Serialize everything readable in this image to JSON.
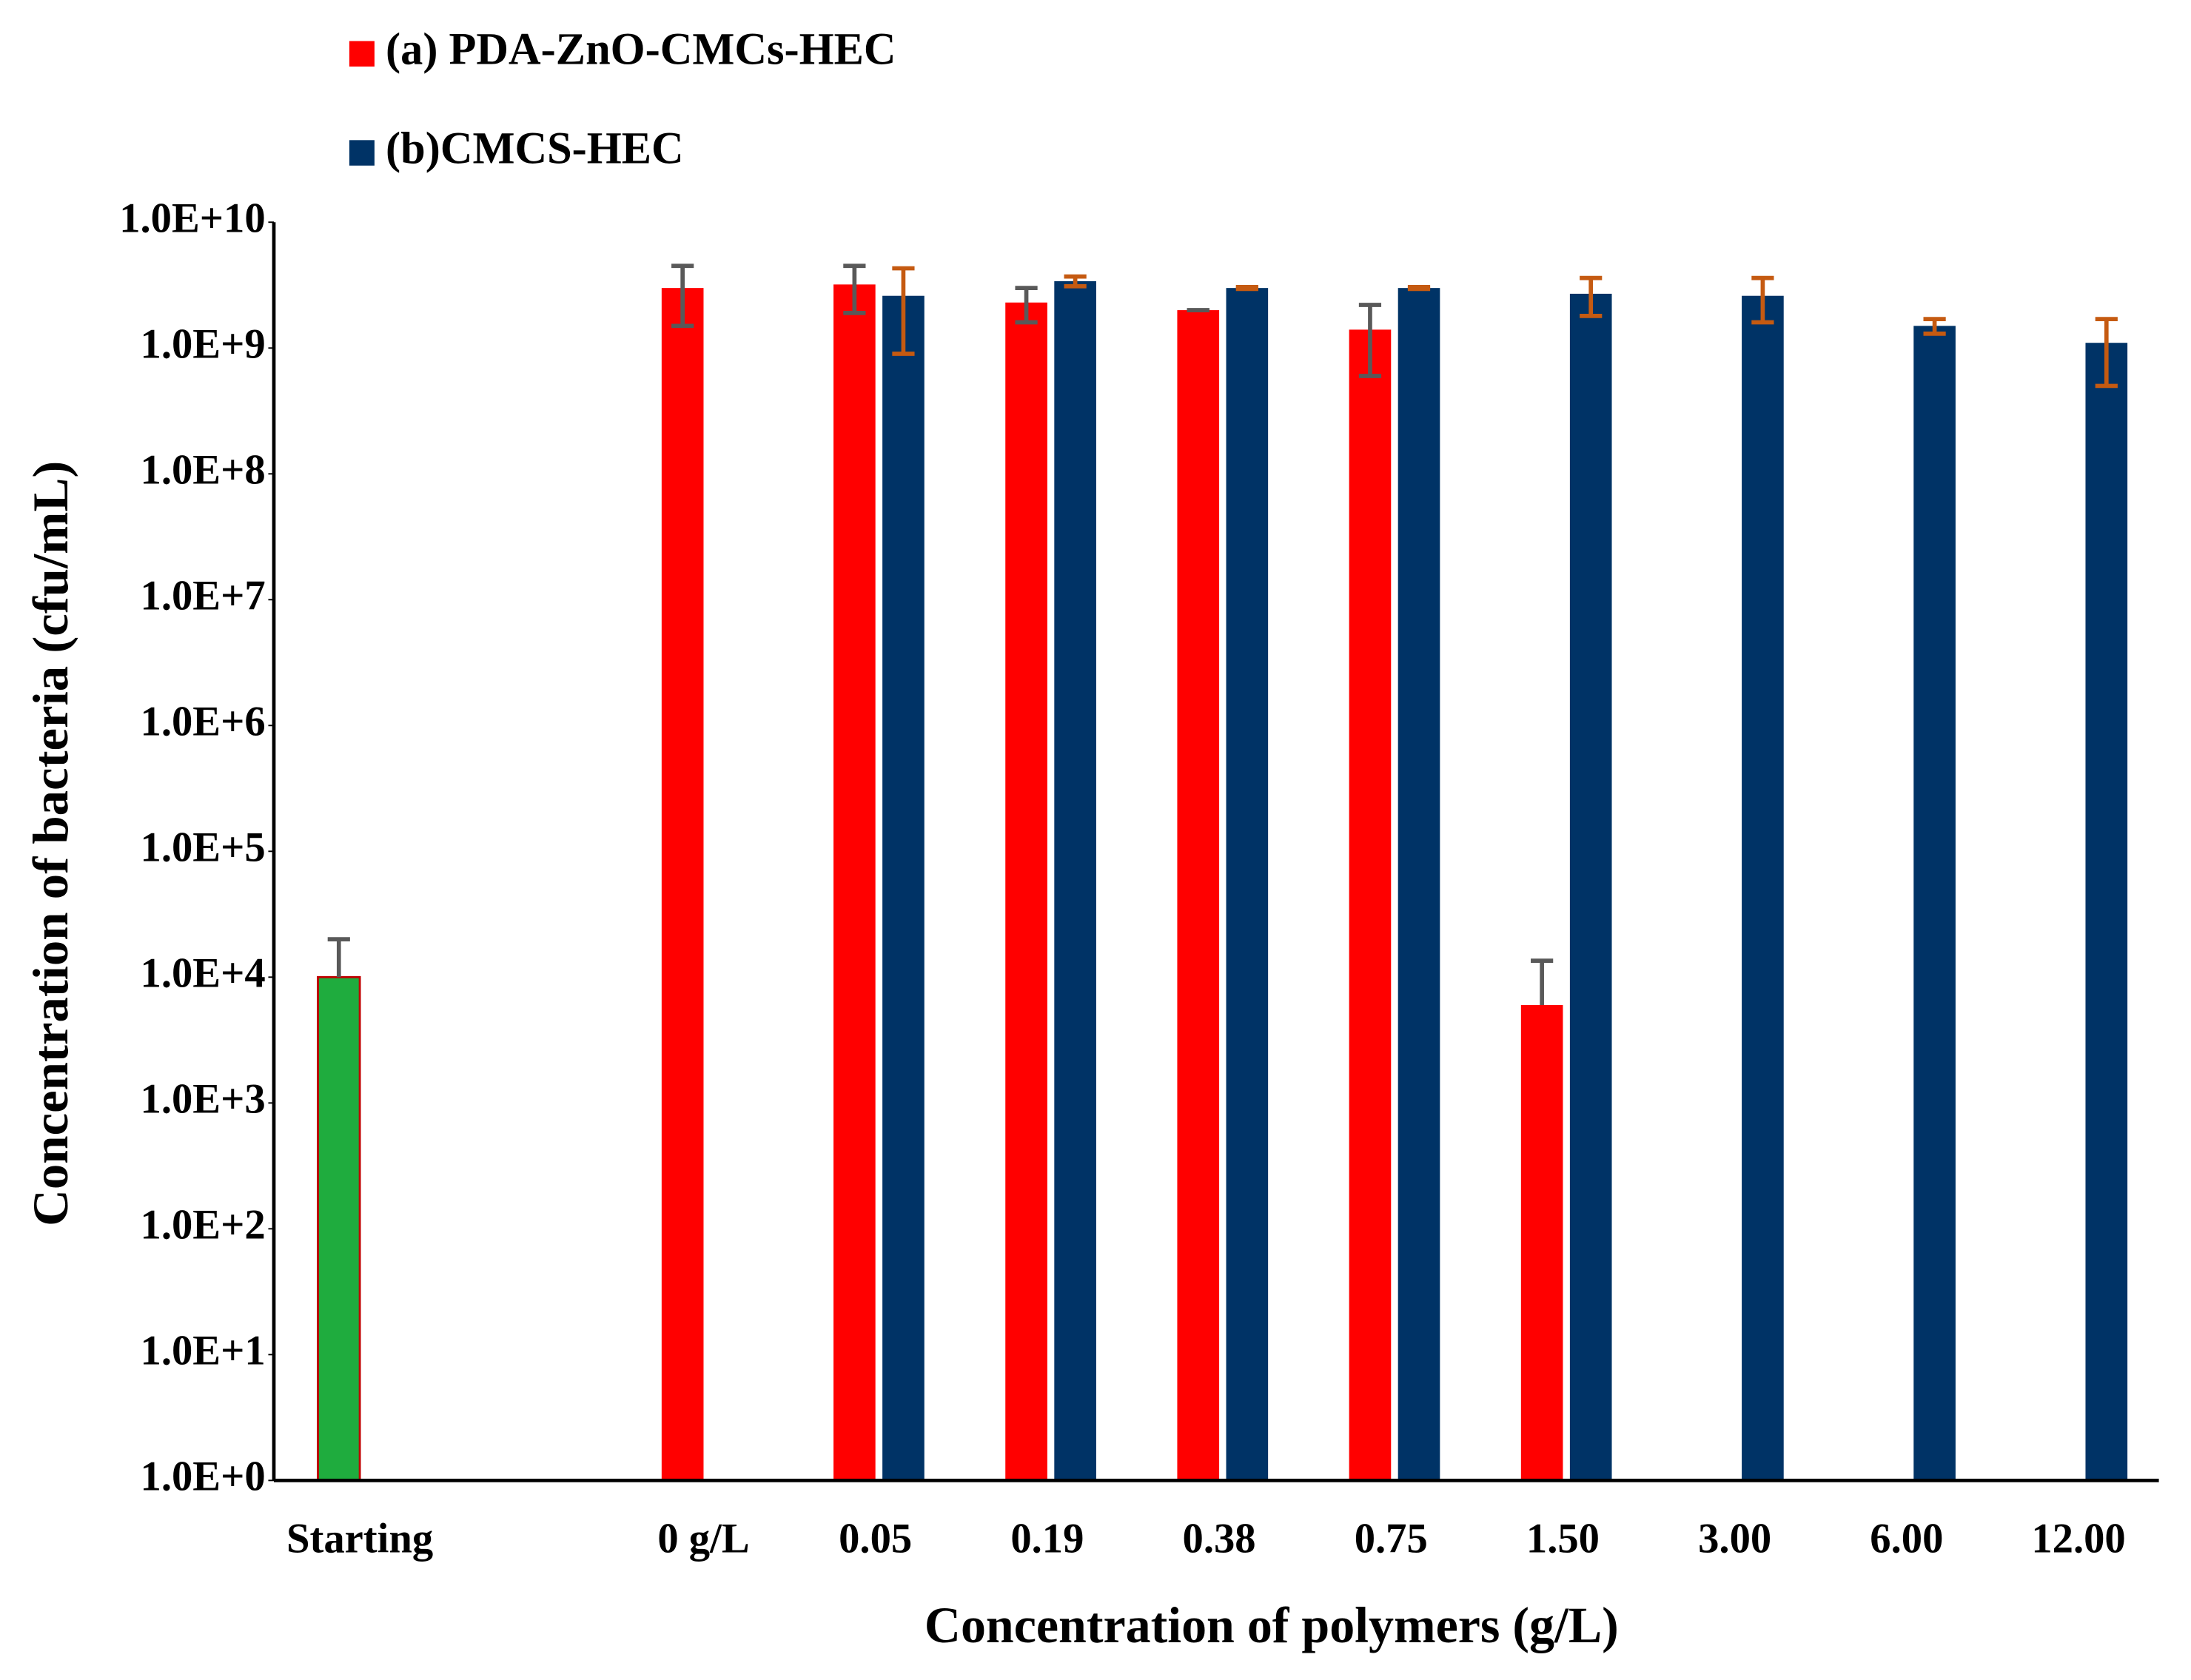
{
  "chart_data": {
    "type": "bar",
    "x_label": "Concentration of polymers (g/L)",
    "y_label": "Concentration of bacteria (cfu/mL)",
    "categories": [
      "Starting",
      null,
      "0 g/L",
      "0.05",
      "0.19",
      "0.38",
      "0.75",
      "1.50",
      "3.00",
      "6.00",
      "12.00"
    ],
    "series": [
      {
        "color": "#1fac3e",
        "error_color": "#595959",
        "values": [
          10000,
          null,
          null,
          null,
          null,
          null,
          null,
          null,
          null,
          null,
          null
        ],
        "errors": [
          10000,
          null,
          null,
          null,
          null,
          null,
          null,
          null,
          null,
          null,
          null
        ]
      },
      {
        "name": "(a) PDA-ZnO-CMCs-HEC",
        "color": "#ff0000",
        "error_color": "#595959",
        "values": [
          null,
          null,
          3000000000,
          3200000000,
          2300000000,
          2000000000,
          1400000000,
          6000,
          null,
          null,
          null
        ],
        "errors": [
          null,
          null,
          1500000000,
          1300000000,
          700000000,
          0,
          800000000,
          7500,
          null,
          null,
          null
        ]
      },
      {
        "name": "(b)CMCS-HEC",
        "color": "#003366",
        "error_color": "#c55a11",
        "values": [
          null,
          null,
          null,
          2600000000,
          3400000000,
          3000000000,
          3000000000,
          2700000000,
          2600000000,
          1500000000,
          1100000000
        ],
        "errors": [
          null,
          null,
          null,
          1700000000,
          300000000,
          50000000,
          50000000,
          900000000,
          1000000000,
          200000000,
          600000000
        ]
      }
    ],
    "log_scale": true,
    "ylim": [
      1,
      10000000000
    ],
    "yticks": [
      {
        "value": 1,
        "label": "1.0E+0"
      },
      {
        "value": 10,
        "label": "1.0E+1"
      },
      {
        "value": 100,
        "label": "1.0E+2"
      },
      {
        "value": 1000,
        "label": "1.0E+3"
      },
      {
        "value": 10000,
        "label": "1.0E+4"
      },
      {
        "value": 100000,
        "label": "1.0E+5"
      },
      {
        "value": 1000000,
        "label": "1.0E+6"
      },
      {
        "value": 10000000,
        "label": "1.0E+7"
      },
      {
        "value": 100000000,
        "label": "1.0E+8"
      },
      {
        "value": 1000000000,
        "label": "1.0E+9"
      },
      {
        "value": 10000000000,
        "label": "1.0E+10"
      }
    ],
    "grid": false,
    "legend": "top"
  }
}
